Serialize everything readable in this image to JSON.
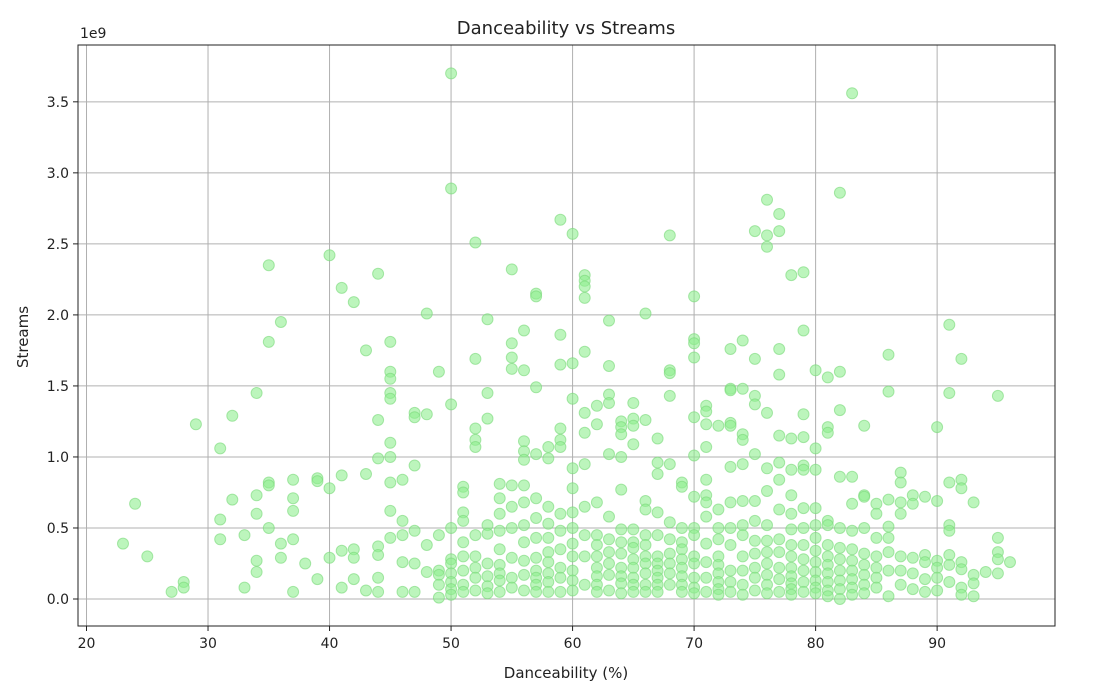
{
  "chart_data": {
    "type": "scatter",
    "title": "Danceability vs Streams",
    "xlabel": "Danceability (%)",
    "ylabel": "Streams",
    "y_offset_label": "1e9",
    "xlim": [
      19.3,
      99.7
    ],
    "ylim": [
      -0.19,
      3.9
    ],
    "x_ticks": [
      20,
      30,
      40,
      50,
      60,
      70,
      80,
      90
    ],
    "x_tick_labels": [
      "20",
      "30",
      "40",
      "50",
      "60",
      "70",
      "80",
      "90"
    ],
    "y_ticks": [
      0.0,
      0.5,
      1.0,
      1.5,
      2.0,
      2.5,
      3.0,
      3.5
    ],
    "y_tick_labels": [
      "0.0",
      "0.5",
      "1.0",
      "1.5",
      "2.0",
      "2.5",
      "3.0",
      "3.5"
    ],
    "grid": true,
    "point_color": "#90ee90",
    "points_x": [
      23,
      24,
      25,
      27,
      28,
      28,
      29,
      31,
      31,
      31,
      32,
      32,
      33,
      33,
      34,
      34,
      34,
      34,
      34,
      35,
      35,
      35,
      35,
      35,
      36,
      36,
      36,
      37,
      37,
      37,
      37,
      37,
      38,
      39,
      39,
      39,
      40,
      40,
      40,
      41,
      41,
      41,
      41,
      42,
      42,
      42,
      42,
      43,
      43,
      43,
      44,
      44,
      44,
      44,
      44,
      44,
      44,
      45,
      45,
      45,
      45,
      45,
      45,
      45,
      45,
      45,
      45,
      46,
      46,
      46,
      46,
      46,
      47,
      47,
      47,
      47,
      47,
      47,
      48,
      48,
      48,
      48,
      49,
      49,
      49,
      49,
      49,
      49,
      50,
      50,
      50,
      50,
      50,
      50,
      50,
      50,
      50,
      50,
      51,
      51,
      51,
      51,
      51,
      51,
      51,
      51,
      51,
      52,
      52,
      52,
      52,
      52,
      52,
      52,
      52,
      52,
      52,
      53,
      53,
      53,
      53,
      53,
      53,
      53,
      53,
      53,
      54,
      54,
      54,
      54,
      54,
      54,
      54,
      54,
      54,
      55,
      55,
      55,
      55,
      55,
      55,
      55,
      55,
      55,
      55,
      56,
      56,
      56,
      56,
      56,
      56,
      56,
      56,
      56,
      56,
      56,
      56,
      57,
      57,
      57,
      57,
      57,
      57,
      57,
      57,
      57,
      57,
      57,
      57,
      58,
      58,
      58,
      58,
      58,
      58,
      58,
      58,
      58,
      58,
      59,
      59,
      59,
      59,
      59,
      59,
      59,
      59,
      59,
      59,
      59,
      59,
      60,
      60,
      60,
      60,
      60,
      60,
      60,
      60,
      60,
      60,
      60,
      60,
      61,
      61,
      61,
      61,
      61,
      61,
      61,
      61,
      61,
      61,
      61,
      61,
      62,
      62,
      62,
      62,
      62,
      62,
      62,
      62,
      62,
      62,
      63,
      63,
      63,
      63,
      63,
      63,
      63,
      63,
      63,
      63,
      63,
      64,
      64,
      64,
      64,
      64,
      64,
      64,
      64,
      64,
      64,
      64,
      64,
      65,
      65,
      65,
      65,
      65,
      65,
      65,
      65,
      65,
      65,
      65,
      65,
      66,
      66,
      66,
      66,
      66,
      66,
      66,
      66,
      66,
      66,
      66,
      67,
      67,
      67,
      67,
      67,
      67,
      67,
      67,
      67,
      67,
      67,
      68,
      68,
      68,
      68,
      68,
      68,
      68,
      68,
      68,
      68,
      68,
      69,
      69,
      69,
      69,
      69,
      69,
      69,
      69,
      69,
      69,
      70,
      70,
      70,
      70,
      70,
      70,
      70,
      70,
      70,
      70,
      70,
      70,
      70,
      70,
      71,
      71,
      71,
      71,
      71,
      71,
      71,
      71,
      71,
      71,
      71,
      71,
      72,
      72,
      72,
      72,
      72,
      72,
      72,
      72,
      72,
      72,
      73,
      73,
      73,
      73,
      73,
      73,
      73,
      73,
      73,
      73,
      73,
      73,
      74,
      74,
      74,
      74,
      74,
      74,
      74,
      74,
      74,
      74,
      74,
      74,
      75,
      75,
      75,
      75,
      75,
      75,
      75,
      75,
      75,
      75,
      75,
      75,
      76,
      76,
      76,
      76,
      76,
      76,
      76,
      76,
      76,
      76,
      76,
      76,
      76,
      77,
      77,
      77,
      77,
      77,
      77,
      77,
      77,
      77,
      77,
      77,
      77,
      77,
      78,
      78,
      78,
      78,
      78,
      78,
      78,
      78,
      78,
      78,
      78,
      78,
      78,
      79,
      79,
      79,
      79,
      79,
      79,
      79,
      79,
      79,
      79,
      79,
      79,
      79,
      80,
      80,
      80,
      80,
      80,
      80,
      80,
      80,
      80,
      80,
      80,
      80,
      81,
      81,
      81,
      81,
      81,
      81,
      81,
      81,
      81,
      81,
      81,
      81,
      82,
      82,
      82,
      82,
      82,
      82,
      82,
      82,
      82,
      82,
      82,
      83,
      83,
      83,
      83,
      83,
      83,
      83,
      83,
      83,
      83,
      84,
      84,
      84,
      84,
      84,
      84,
      84,
      84,
      84,
      85,
      85,
      85,
      85,
      85,
      85,
      85,
      86,
      86,
      86,
      86,
      86,
      86,
      86,
      86,
      87,
      87,
      87,
      87,
      87,
      87,
      87,
      88,
      88,
      88,
      88,
      88,
      89,
      89,
      89,
      89,
      89,
      90,
      90,
      90,
      90,
      90,
      90,
      91,
      91,
      91,
      91,
      91,
      91,
      91,
      91,
      92,
      92,
      92,
      92,
      92,
      92,
      92,
      93,
      93,
      93,
      93,
      94,
      95,
      95,
      95,
      95,
      95,
      96
    ],
    "points_y": [
      0.39,
      0.67,
      0.3,
      0.05,
      0.12,
      0.08,
      1.23,
      1.06,
      0.56,
      0.42,
      1.29,
      0.7,
      0.45,
      0.08,
      1.45,
      0.73,
      0.6,
      0.27,
      0.19,
      2.35,
      1.81,
      0.82,
      0.8,
      0.5,
      1.95,
      0.39,
      0.29,
      0.84,
      0.71,
      0.62,
      0.42,
      0.05,
      0.25,
      0.85,
      0.83,
      0.14,
      2.42,
      0.78,
      0.29,
      2.19,
      0.87,
      0.34,
      0.08,
      2.09,
      0.35,
      0.29,
      0.14,
      1.75,
      0.88,
      0.06,
      2.29,
      1.26,
      0.99,
      0.37,
      0.31,
      0.15,
      0.05,
      1.81,
      1.6,
      1.55,
      1.45,
      1.41,
      1.1,
      1.0,
      0.82,
      0.62,
      0.43,
      0.84,
      0.55,
      0.45,
      0.26,
      0.05,
      1.31,
      1.28,
      0.94,
      0.48,
      0.25,
      0.05,
      2.01,
      1.3,
      0.38,
      0.19,
      1.6,
      0.45,
      0.2,
      0.17,
      0.1,
      0.01,
      3.7,
      2.89,
      1.37,
      0.5,
      0.28,
      0.25,
      0.18,
      0.12,
      0.07,
      0.03,
      0.79,
      0.75,
      0.61,
      0.55,
      0.4,
      0.3,
      0.2,
      0.1,
      0.05,
      2.51,
      1.69,
      1.2,
      1.12,
      1.07,
      0.45,
      0.3,
      0.22,
      0.15,
      0.06,
      1.97,
      1.45,
      1.27,
      0.52,
      0.46,
      0.25,
      0.16,
      0.09,
      0.04,
      0.81,
      0.71,
      0.6,
      0.48,
      0.35,
      0.24,
      0.18,
      0.13,
      0.05,
      2.32,
      1.8,
      1.7,
      1.62,
      0.8,
      0.65,
      0.5,
      0.29,
      0.15,
      0.08,
      1.89,
      1.61,
      1.11,
      1.04,
      0.98,
      0.8,
      0.68,
      0.52,
      0.4,
      0.27,
      0.17,
      0.06,
      2.15,
      2.13,
      1.49,
      1.02,
      0.71,
      0.57,
      0.43,
      0.29,
      0.2,
      0.15,
      0.1,
      0.05,
      1.07,
      0.99,
      0.65,
      0.53,
      0.43,
      0.33,
      0.26,
      0.18,
      0.12,
      0.05,
      2.67,
      1.86,
      1.65,
      1.2,
      1.12,
      1.07,
      0.6,
      0.48,
      0.35,
      0.22,
      0.15,
      0.05,
      2.57,
      1.66,
      1.41,
      0.92,
      0.78,
      0.61,
      0.5,
      0.39,
      0.3,
      0.2,
      0.13,
      0.06,
      2.28,
      2.24,
      2.2,
      2.12,
      1.74,
      1.31,
      1.17,
      0.95,
      0.65,
      0.45,
      0.3,
      0.1,
      1.36,
      1.23,
      0.68,
      0.45,
      0.38,
      0.3,
      0.22,
      0.16,
      0.1,
      0.05,
      1.96,
      1.64,
      1.44,
      1.38,
      1.02,
      0.58,
      0.42,
      0.33,
      0.25,
      0.17,
      0.06,
      1.25,
      1.21,
      1.16,
      1.0,
      0.77,
      0.49,
      0.4,
      0.32,
      0.22,
      0.16,
      0.11,
      0.04,
      1.38,
      1.27,
      1.22,
      1.09,
      0.49,
      0.4,
      0.36,
      0.28,
      0.22,
      0.15,
      0.1,
      0.05,
      2.01,
      1.26,
      0.69,
      0.63,
      0.45,
      0.38,
      0.3,
      0.25,
      0.18,
      0.1,
      0.05,
      1.13,
      0.96,
      0.88,
      0.61,
      0.45,
      0.3,
      0.25,
      0.2,
      0.15,
      0.1,
      0.05,
      2.56,
      1.61,
      1.59,
      1.43,
      0.95,
      0.54,
      0.42,
      0.32,
      0.25,
      0.18,
      0.1,
      0.82,
      0.79,
      0.5,
      0.4,
      0.35,
      0.28,
      0.22,
      0.16,
      0.1,
      0.05,
      2.13,
      1.83,
      1.8,
      1.7,
      1.28,
      1.01,
      0.72,
      0.5,
      0.45,
      0.3,
      0.25,
      0.15,
      0.08,
      0.04,
      1.36,
      1.32,
      1.23,
      1.07,
      0.84,
      0.73,
      0.68,
      0.58,
      0.39,
      0.26,
      0.15,
      0.05,
      1.22,
      0.63,
      0.5,
      0.42,
      0.3,
      0.24,
      0.18,
      0.12,
      0.07,
      0.03,
      1.76,
      1.48,
      1.47,
      1.24,
      1.22,
      0.93,
      0.68,
      0.5,
      0.38,
      0.2,
      0.12,
      0.05,
      1.82,
      1.48,
      1.16,
      1.12,
      0.95,
      0.69,
      0.52,
      0.45,
      0.3,
      0.2,
      0.1,
      0.03,
      2.59,
      1.69,
      1.43,
      1.37,
      1.02,
      0.69,
      0.55,
      0.41,
      0.32,
      0.22,
      0.15,
      0.06,
      2.81,
      2.56,
      2.48,
      1.31,
      0.92,
      0.76,
      0.52,
      0.41,
      0.33,
      0.25,
      0.17,
      0.1,
      0.04,
      2.71,
      2.59,
      1.76,
      1.58,
      1.15,
      0.96,
      0.84,
      0.63,
      0.42,
      0.33,
      0.22,
      0.14,
      0.05,
      2.28,
      1.13,
      0.91,
      0.73,
      0.6,
      0.49,
      0.38,
      0.3,
      0.22,
      0.16,
      0.11,
      0.07,
      0.03,
      2.3,
      1.89,
      1.3,
      1.14,
      0.94,
      0.91,
      0.64,
      0.5,
      0.38,
      0.28,
      0.2,
      0.12,
      0.05,
      1.61,
      1.06,
      0.91,
      0.64,
      0.52,
      0.43,
      0.34,
      0.26,
      0.19,
      0.13,
      0.08,
      0.04,
      1.56,
      1.21,
      1.17,
      0.55,
      0.52,
      0.38,
      0.3,
      0.24,
      0.18,
      0.12,
      0.06,
      0.02,
      2.86,
      1.6,
      1.33,
      0.86,
      0.5,
      0.36,
      0.28,
      0.2,
      0.13,
      0.07,
      0.0,
      3.56,
      0.86,
      0.67,
      0.48,
      0.35,
      0.27,
      0.2,
      0.14,
      0.08,
      0.03,
      1.22,
      0.73,
      0.72,
      0.5,
      0.32,
      0.24,
      0.17,
      0.1,
      0.04,
      0.67,
      0.6,
      0.43,
      0.3,
      0.22,
      0.15,
      0.08,
      1.72,
      1.46,
      0.7,
      0.51,
      0.43,
      0.33,
      0.2,
      0.02,
      0.89,
      0.82,
      0.68,
      0.6,
      0.3,
      0.2,
      0.1,
      0.73,
      0.67,
      0.29,
      0.18,
      0.07,
      0.72,
      0.31,
      0.26,
      0.14,
      0.05,
      1.21,
      0.69,
      0.27,
      0.22,
      0.15,
      0.06,
      1.93,
      1.45,
      0.82,
      0.52,
      0.48,
      0.31,
      0.24,
      0.12,
      1.69,
      0.84,
      0.78,
      0.26,
      0.21,
      0.08,
      0.03,
      0.68,
      0.17,
      0.11,
      0.02,
      0.19,
      1.43,
      0.43,
      0.33,
      0.28,
      0.18,
      0.26
    ]
  }
}
